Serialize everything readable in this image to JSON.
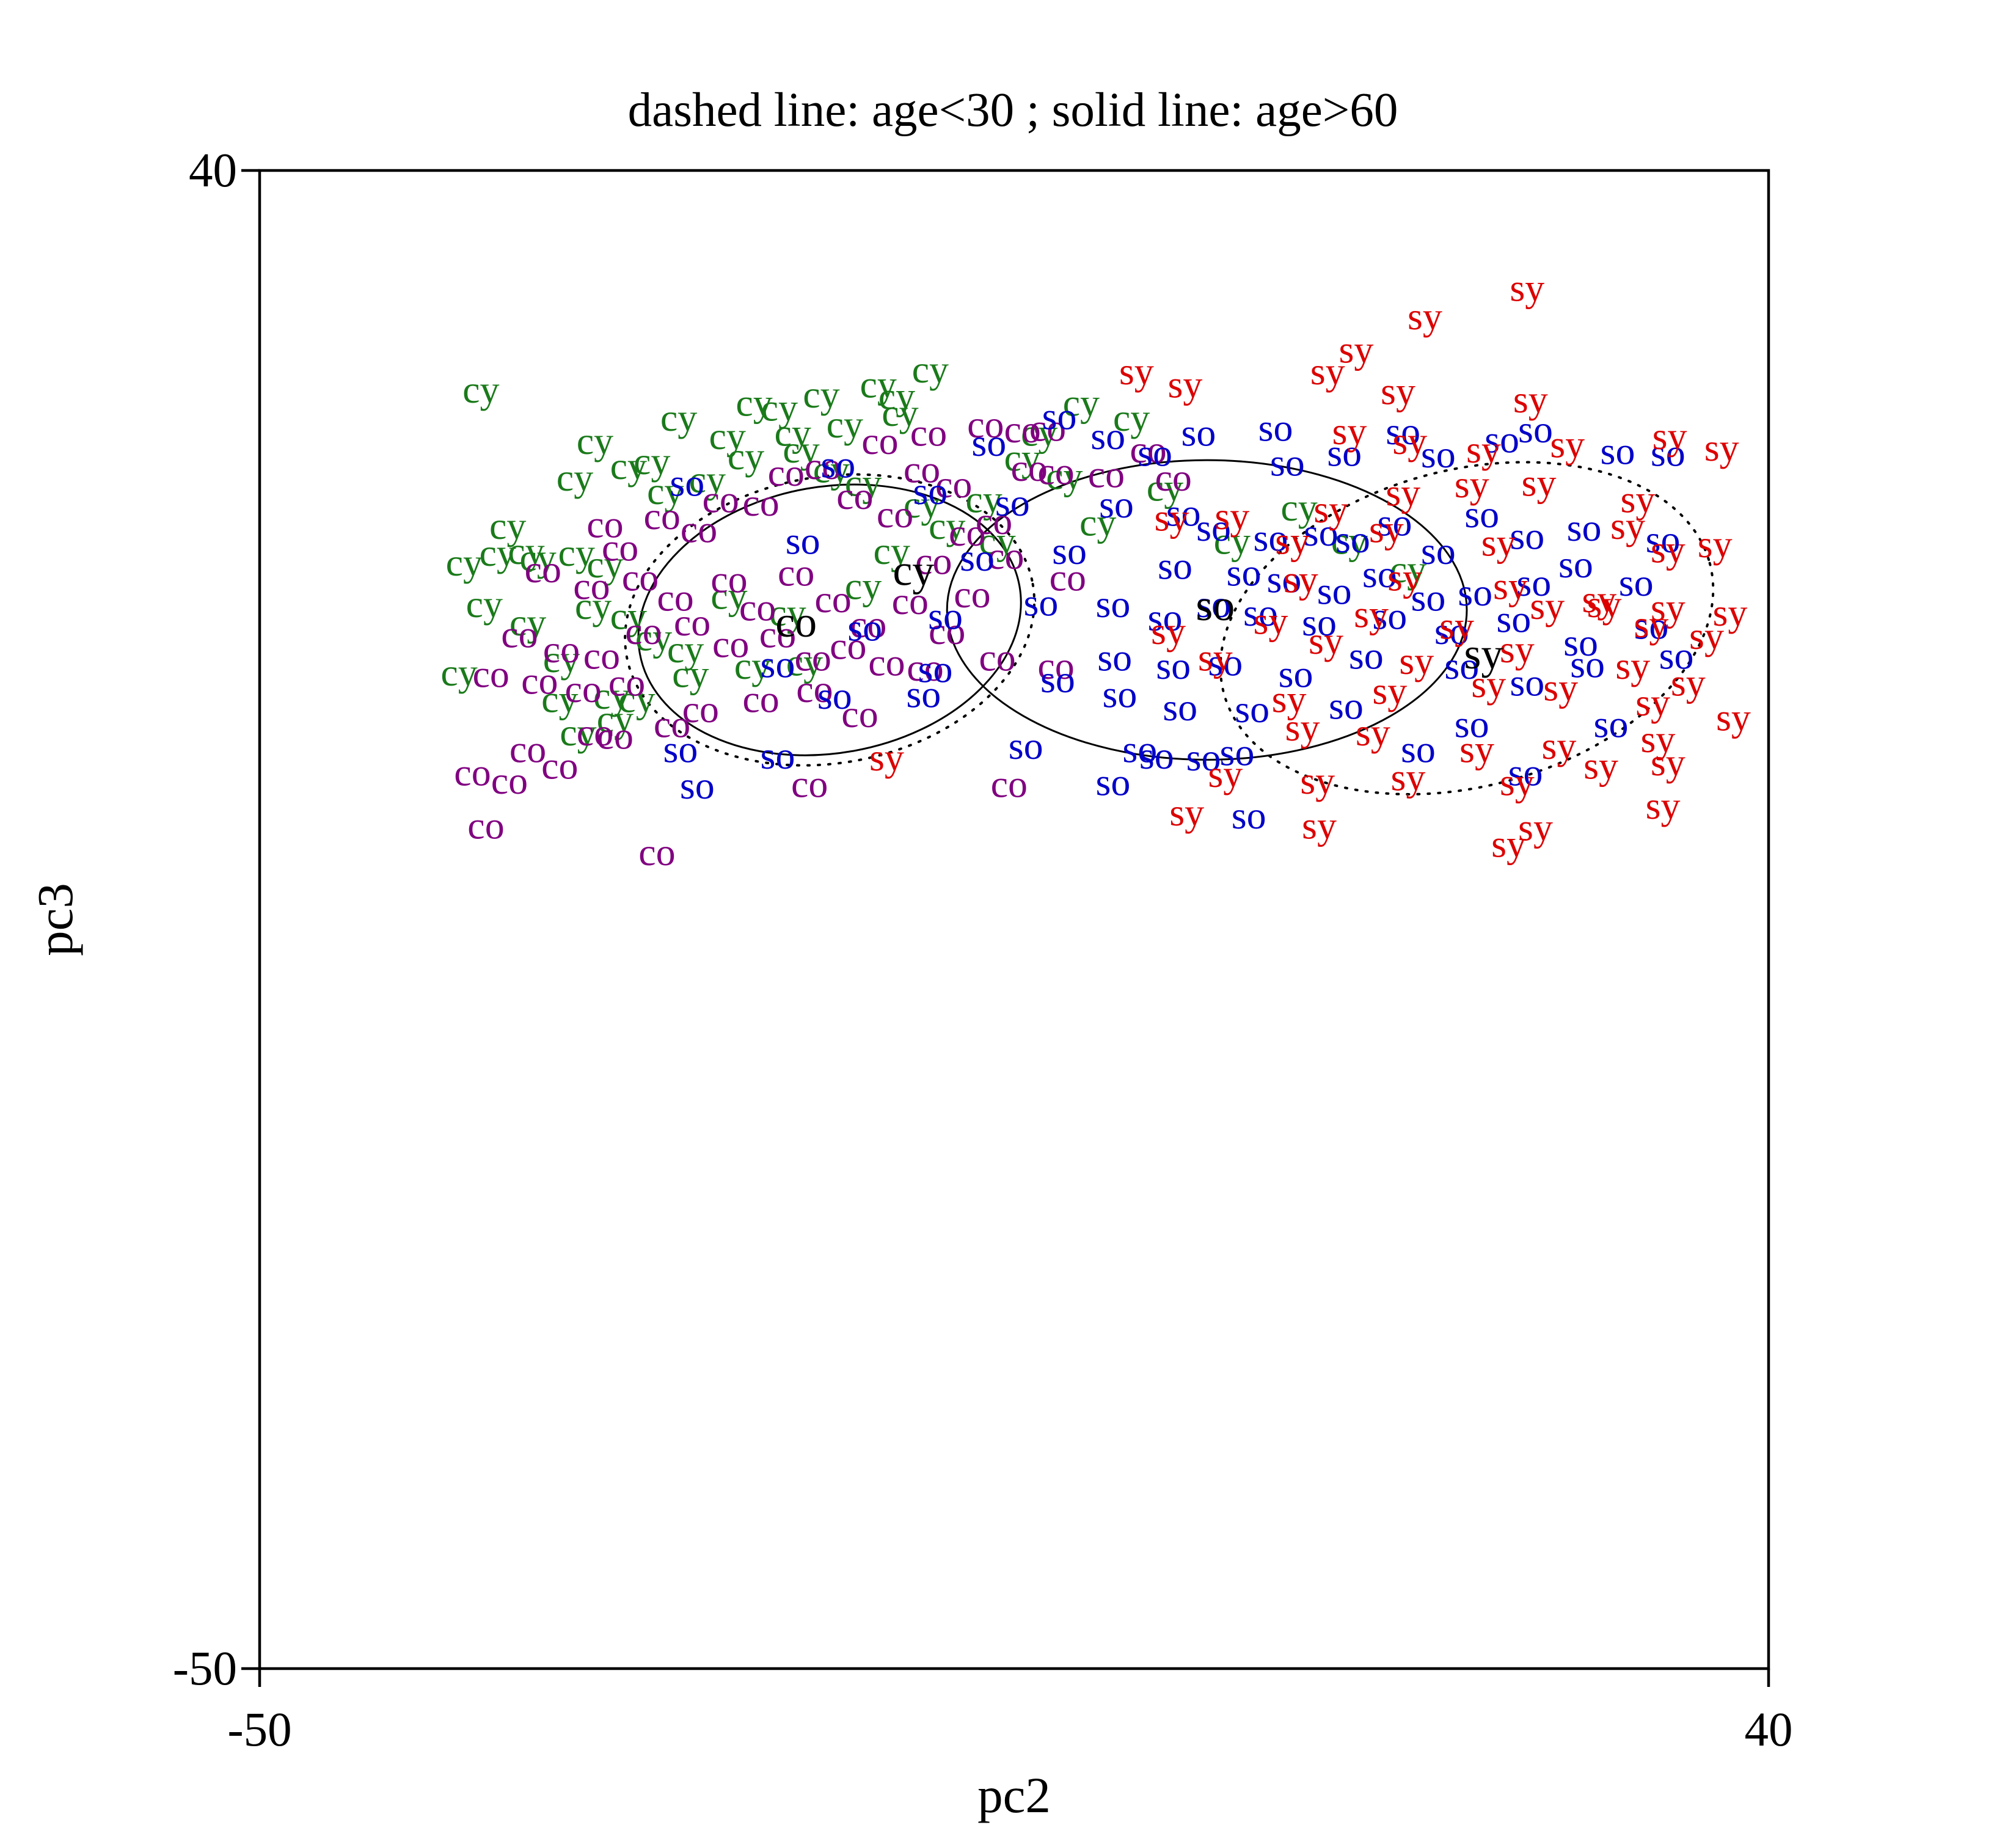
{
  "chart_data": {
    "type": "scatter",
    "title": "dashed line: age<30 ; solid line: age>60",
    "xlabel": "pc2",
    "ylabel": "pc3",
    "xlim": [
      -50,
      40
    ],
    "ylim": [
      -50,
      40
    ],
    "x_ticks": [
      "-50",
      "40"
    ],
    "y_ticks": [
      "40",
      "-50"
    ],
    "grid": false,
    "legend": "none",
    "series": [
      {
        "name": "cy",
        "color": "#1a7a1a",
        "points": [
          [
            -36.8,
            26.6
          ],
          [
            -31.2,
            21.3
          ],
          [
            -30.0,
            23.5
          ],
          [
            -25.0,
            24.9
          ],
          [
            -20.5,
            25.8
          ],
          [
            -17.7,
            23.0
          ],
          [
            -16.5,
            26.3
          ],
          [
            -13.1,
            26.9
          ],
          [
            -10.0,
            27.8
          ],
          [
            -15.1,
            24.5
          ],
          [
            -11.8,
            25.2
          ],
          [
            -19.0,
            25.5
          ],
          [
            -14.0,
            21.0
          ],
          [
            -23.3,
            21.2
          ],
          [
            -28.0,
            22.0
          ],
          [
            -26.6,
            22.3
          ],
          [
            -22.1,
            23.8
          ],
          [
            -21.0,
            22.6
          ],
          [
            -18.2,
            24.0
          ],
          [
            -15.9,
            21.8
          ],
          [
            -25.8,
            20.5
          ],
          [
            -35.2,
            18.4
          ],
          [
            -37.8,
            16.2
          ],
          [
            -35.8,
            16.8
          ],
          [
            -34.1,
            16.9
          ],
          [
            -31.1,
            16.8
          ],
          [
            -29.4,
            16.1
          ],
          [
            -33.4,
            16.5
          ],
          [
            -36.6,
            13.7
          ],
          [
            -34.0,
            12.6
          ],
          [
            -30.1,
            13.6
          ],
          [
            -28.0,
            13.0
          ],
          [
            -26.5,
            11.7
          ],
          [
            -24.6,
            11.0
          ],
          [
            -22.0,
            14.2
          ],
          [
            -18.5,
            13.2
          ],
          [
            -14.0,
            14.8
          ],
          [
            -12.3,
            16.9
          ],
          [
            -9.0,
            18.4
          ],
          [
            -6.8,
            20.0
          ],
          [
            -4.5,
            22.5
          ],
          [
            -2.0,
            21.4
          ],
          [
            0.0,
            18.6
          ],
          [
            -6.0,
            17.5
          ],
          [
            -10.5,
            19.7
          ],
          [
            -3.5,
            24.0
          ],
          [
            -1.0,
            25.8
          ],
          [
            2.0,
            24.9
          ],
          [
            4.0,
            20.7
          ],
          [
            -32.0,
            10.4
          ],
          [
            -29.0,
            8.2
          ],
          [
            -27.5,
            8.0
          ],
          [
            -24.3,
            9.5
          ],
          [
            -20.6,
            10.0
          ],
          [
            -17.5,
            10.2
          ],
          [
            -38.1,
            9.6
          ],
          [
            -32.1,
            8.0
          ],
          [
            -28.8,
            6.8
          ],
          [
            -31.0,
            6.0
          ],
          [
            8.0,
            17.5
          ],
          [
            12.0,
            19.5
          ],
          [
            15.0,
            17.5
          ],
          [
            18.5,
            15.8
          ],
          [
            -12.0,
            26.2
          ]
        ]
      },
      {
        "name": "co",
        "color": "#800080",
        "points": [
          [
            -29.4,
            18.5
          ],
          [
            -28.5,
            17.1
          ],
          [
            -26.0,
            19.0
          ],
          [
            -23.8,
            18.2
          ],
          [
            -22.5,
            20.0
          ],
          [
            -20.1,
            19.8
          ],
          [
            -18.6,
            21.6
          ],
          [
            -16.4,
            22.0
          ],
          [
            -14.5,
            20.2
          ],
          [
            -12.1,
            19.1
          ],
          [
            -10.5,
            21.8
          ],
          [
            -8.6,
            20.9
          ],
          [
            -6.2,
            18.7
          ],
          [
            -4.1,
            21.9
          ],
          [
            -2.5,
            21.7
          ],
          [
            -13.0,
            23.5
          ],
          [
            -10.1,
            24.0
          ],
          [
            -6.7,
            24.5
          ],
          [
            -4.5,
            24.2
          ],
          [
            -3.0,
            24.3
          ],
          [
            0.5,
            21.5
          ],
          [
            3.0,
            23.0
          ],
          [
            4.5,
            21.3
          ],
          [
            -33.1,
            15.8
          ],
          [
            -30.2,
            14.8
          ],
          [
            -27.3,
            15.3
          ],
          [
            -25.2,
            14.1
          ],
          [
            -22.0,
            15.2
          ],
          [
            -20.3,
            13.5
          ],
          [
            -18.0,
            15.6
          ],
          [
            -15.8,
            14.0
          ],
          [
            -13.7,
            12.5
          ],
          [
            -11.2,
            13.9
          ],
          [
            -9.0,
            12.1
          ],
          [
            -7.5,
            14.3
          ],
          [
            -34.5,
            11.9
          ],
          [
            -32.0,
            11.0
          ],
          [
            -29.6,
            10.6
          ],
          [
            -27.1,
            12.1
          ],
          [
            -24.2,
            12.6
          ],
          [
            -21.9,
            11.3
          ],
          [
            -19.1,
            11.9
          ],
          [
            -17.0,
            10.5
          ],
          [
            -14.9,
            11.2
          ],
          [
            -12.6,
            10.2
          ],
          [
            -10.3,
            9.9
          ],
          [
            -6.0,
            10.5
          ],
          [
            -36.2,
            9.5
          ],
          [
            -33.3,
            9.1
          ],
          [
            -30.7,
            8.6
          ],
          [
            -28.1,
            9.0
          ],
          [
            -23.7,
            7.4
          ],
          [
            -20.1,
            8.0
          ],
          [
            -16.9,
            8.6
          ],
          [
            -14.2,
            7.1
          ],
          [
            -2.5,
            10.0
          ],
          [
            -30.0,
            6.0
          ],
          [
            -28.8,
            5.8
          ],
          [
            -25.4,
            6.5
          ],
          [
            -37.3,
            3.6
          ],
          [
            -35.1,
            3.1
          ],
          [
            -36.5,
            0.4
          ],
          [
            -26.3,
            -1.2
          ],
          [
            -17.2,
            2.9
          ],
          [
            -5.3,
            2.9
          ],
          [
            -34.0,
            5.0
          ],
          [
            -32.1,
            4.0
          ],
          [
            -7.8,
            18.0
          ],
          [
            -1.8,
            15.3
          ],
          [
            -5.5,
            16.6
          ],
          [
            -9.8,
            16.3
          ]
        ]
      },
      {
        "name": "so",
        "color": "#0000c8",
        "points": [
          [
            -24.5,
            21.0
          ],
          [
            -15.5,
            22.1
          ],
          [
            -6.5,
            23.4
          ],
          [
            0.6,
            23.8
          ],
          [
            3.4,
            22.8
          ],
          [
            6.0,
            24.0
          ],
          [
            10.6,
            24.3
          ],
          [
            11.3,
            22.2
          ],
          [
            14.7,
            22.8
          ],
          [
            18.2,
            24.1
          ],
          [
            20.3,
            22.7
          ],
          [
            24.1,
            23.6
          ],
          [
            26.1,
            24.2
          ],
          [
            31.0,
            22.9
          ],
          [
            34.0,
            22.8
          ],
          [
            -2.3,
            25.0
          ],
          [
            -10.0,
            20.5
          ],
          [
            -5.1,
            19.8
          ],
          [
            1.1,
            19.7
          ],
          [
            5.1,
            19.2
          ],
          [
            6.9,
            18.3
          ],
          [
            10.3,
            17.7
          ],
          [
            13.3,
            18.0
          ],
          [
            15.2,
            17.6
          ],
          [
            17.7,
            18.6
          ],
          [
            20.3,
            16.9
          ],
          [
            22.9,
            19.1
          ],
          [
            25.6,
            17.8
          ],
          [
            29.0,
            18.3
          ],
          [
            33.7,
            17.6
          ],
          [
            -17.6,
            17.5
          ],
          [
            -7.2,
            16.5
          ],
          [
            -1.7,
            16.9
          ],
          [
            4.6,
            16.0
          ],
          [
            8.7,
            15.6
          ],
          [
            11.1,
            15.2
          ],
          [
            14.1,
            14.5
          ],
          [
            16.8,
            15.5
          ],
          [
            19.7,
            14.1
          ],
          [
            22.5,
            14.4
          ],
          [
            26.0,
            15.0
          ],
          [
            28.5,
            16.1
          ],
          [
            32.1,
            15.0
          ],
          [
            -13.9,
            12.3
          ],
          [
            -9.1,
            13.0
          ],
          [
            -3.4,
            13.8
          ],
          [
            0.9,
            13.7
          ],
          [
            4.0,
            12.9
          ],
          [
            6.9,
            13.7
          ],
          [
            9.7,
            13.2
          ],
          [
            13.2,
            12.6
          ],
          [
            17.4,
            13.0
          ],
          [
            21.1,
            12.1
          ],
          [
            24.8,
            12.8
          ],
          [
            28.8,
            11.4
          ],
          [
            33.0,
            12.4
          ],
          [
            -19.1,
            10.1
          ],
          [
            -9.7,
            9.8
          ],
          [
            -2.4,
            9.2
          ],
          [
            1.0,
            10.5
          ],
          [
            4.5,
            10.0
          ],
          [
            7.6,
            10.2
          ],
          [
            11.8,
            9.5
          ],
          [
            16.0,
            10.6
          ],
          [
            21.7,
            10.0
          ],
          [
            25.6,
            9.0
          ],
          [
            29.2,
            10.1
          ],
          [
            34.5,
            10.6
          ],
          [
            -15.7,
            8.2
          ],
          [
            -10.4,
            8.3
          ],
          [
            1.3,
            8.3
          ],
          [
            4.9,
            7.5
          ],
          [
            9.2,
            7.4
          ],
          [
            14.8,
            7.6
          ],
          [
            22.3,
            6.5
          ],
          [
            30.6,
            6.5
          ],
          [
            -24.9,
            5.0
          ],
          [
            -19.1,
            4.6
          ],
          [
            -4.3,
            5.2
          ],
          [
            3.5,
            4.6
          ],
          [
            6.3,
            4.5
          ],
          [
            8.3,
            4.8
          ],
          [
            19.1,
            5.0
          ],
          [
            25.5,
            3.6
          ],
          [
            -23.9,
            2.8
          ],
          [
            0.9,
            3.0
          ],
          [
            2.5,
            5.0
          ],
          [
            9.0,
            1.0
          ]
        ]
      },
      {
        "name": "sy",
        "color": "#dc0000",
        "points": [
          [
            25.6,
            32.7
          ],
          [
            19.5,
            31.0
          ],
          [
            15.4,
            29.0
          ],
          [
            13.7,
            27.7
          ],
          [
            17.9,
            26.5
          ],
          [
            25.8,
            26.0
          ],
          [
            34.1,
            23.8
          ],
          [
            37.2,
            23.1
          ],
          [
            2.3,
            27.7
          ],
          [
            5.2,
            26.9
          ],
          [
            15.0,
            24.1
          ],
          [
            18.6,
            23.5
          ],
          [
            23.0,
            23.0
          ],
          [
            28.0,
            23.3
          ],
          [
            13.9,
            19.4
          ],
          [
            18.2,
            20.4
          ],
          [
            22.3,
            20.9
          ],
          [
            26.3,
            21.0
          ],
          [
            32.2,
            20.0
          ],
          [
            11.6,
            17.5
          ],
          [
            17.2,
            18.2
          ],
          [
            23.9,
            17.4
          ],
          [
            31.6,
            18.4
          ],
          [
            34.0,
            17.0
          ],
          [
            36.8,
            17.3
          ],
          [
            12.1,
            15.2
          ],
          [
            18.3,
            15.3
          ],
          [
            24.6,
            14.8
          ],
          [
            29.9,
            14.0
          ],
          [
            34.0,
            13.5
          ],
          [
            37.7,
            13.2
          ],
          [
            4.2,
            12.1
          ],
          [
            10.3,
            12.7
          ],
          [
            16.3,
            13.1
          ],
          [
            21.4,
            12.4
          ],
          [
            26.8,
            13.6
          ],
          [
            30.2,
            13.7
          ],
          [
            33.0,
            12.5
          ],
          [
            36.3,
            11.8
          ],
          [
            7.0,
            10.5
          ],
          [
            13.6,
            11.5
          ],
          [
            19.0,
            10.3
          ],
          [
            25.0,
            11.0
          ],
          [
            31.9,
            10.0
          ],
          [
            35.2,
            9.0
          ],
          [
            11.4,
            8.0
          ],
          [
            17.4,
            8.5
          ],
          [
            23.3,
            8.9
          ],
          [
            27.6,
            8.7
          ],
          [
            33.1,
            7.8
          ],
          [
            37.9,
            6.9
          ],
          [
            12.2,
            6.3
          ],
          [
            16.4,
            6.0
          ],
          [
            22.6,
            5.0
          ],
          [
            27.5,
            5.2
          ],
          [
            33.4,
            5.6
          ],
          [
            7.6,
            3.5
          ],
          [
            13.1,
            3.1
          ],
          [
            18.5,
            3.3
          ],
          [
            25.0,
            3.0
          ],
          [
            30.0,
            4.0
          ],
          [
            34.0,
            4.2
          ],
          [
            5.3,
            1.2
          ],
          [
            13.2,
            0.4
          ],
          [
            26.1,
            0.3
          ],
          [
            24.5,
            -0.7
          ],
          [
            33.7,
            1.6
          ],
          [
            -12.6,
            4.5
          ],
          [
            4.4,
            18.9
          ],
          [
            8.0,
            19.0
          ]
        ]
      }
    ],
    "group_centers": [
      {
        "label": "cy",
        "x": -11.0,
        "y": 15.7
      },
      {
        "label": "co",
        "x": -18.0,
        "y": 12.6
      },
      {
        "label": "so",
        "x": 7.0,
        "y": 13.6
      },
      {
        "label": "sy",
        "x": 23.0,
        "y": 10.7
      }
    ],
    "ellipses": [
      {
        "group": "co",
        "style": "solid",
        "cx": -16.0,
        "cy": 13.0,
        "rx": 11.5,
        "ry": 8.0,
        "angle_deg": -10
      },
      {
        "group": "co",
        "style": "dotted",
        "cx": -16.0,
        "cy": 13.0,
        "rx": 12.3,
        "ry": 8.6,
        "angle_deg": -10
      },
      {
        "group": "so",
        "style": "solid",
        "cx": 6.5,
        "cy": 13.6,
        "rx": 15.5,
        "ry": 9.0,
        "angle_deg": 0
      },
      {
        "group": "sy",
        "style": "dotted",
        "cx": 22.0,
        "cy": 12.5,
        "rx": 15.0,
        "ry": 9.5,
        "angle_deg": -15
      }
    ]
  }
}
